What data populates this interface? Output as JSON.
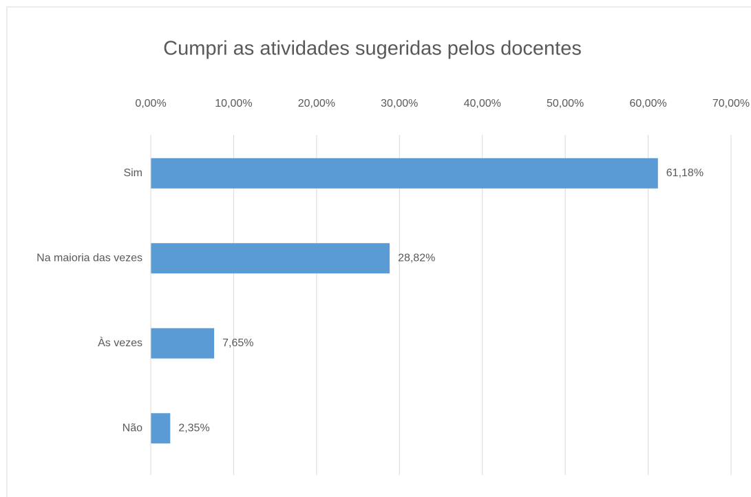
{
  "chart_data": {
    "type": "bar",
    "orientation": "horizontal",
    "title": "Cumpri as atividades sugeridas pelos docentes",
    "categories": [
      "Sim",
      "Na maioria das vezes",
      "Às vezes",
      "Não"
    ],
    "values": [
      61.18,
      28.82,
      7.65,
      2.35
    ],
    "value_labels": [
      "61,18%",
      "28,82%",
      "7,65%",
      "2,35%"
    ],
    "color": "#5b9bd5",
    "xlim": [
      0,
      70
    ],
    "xticks": [
      {
        "value": 0,
        "label": "0,00%"
      },
      {
        "value": 10,
        "label": "10,00%"
      },
      {
        "value": 20,
        "label": "20,00%"
      },
      {
        "value": 30,
        "label": "30,00%"
      },
      {
        "value": 40,
        "label": "40,00%"
      },
      {
        "value": 50,
        "label": "50,00%"
      },
      {
        "value": 60,
        "label": "60,00%"
      },
      {
        "value": 70,
        "label": "70,00%"
      }
    ],
    "grid": true
  }
}
